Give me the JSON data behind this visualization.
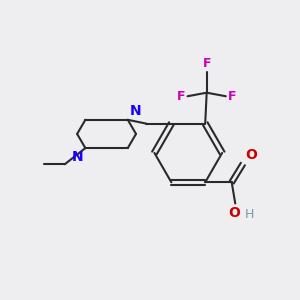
{
  "background_color": "#eeeef0",
  "bond_color": "#2a2a2a",
  "bond_width": 1.5,
  "n_color": "#1a00ff",
  "o_color": "#cc0000",
  "f_color": "#cc00bb",
  "h_color": "#7a99aa",
  "figsize": [
    3.0,
    3.0
  ],
  "dpi": 100,
  "xlim": [
    0,
    10
  ],
  "ylim": [
    0,
    10
  ]
}
